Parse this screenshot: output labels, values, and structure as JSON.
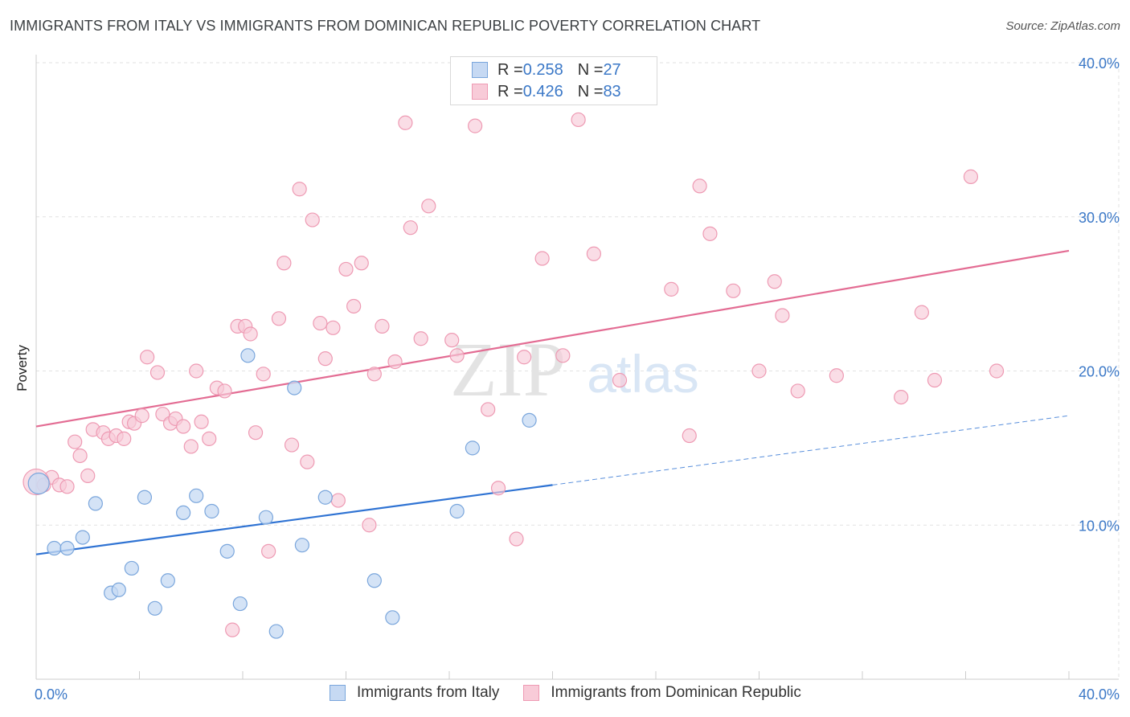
{
  "title": "IMMIGRANTS FROM ITALY VS IMMIGRANTS FROM DOMINICAN REPUBLIC POVERTY CORRELATION CHART",
  "source": "Source: ZipAtlas.com",
  "watermark": {
    "zip": "ZIP",
    "atlas": "atlas"
  },
  "legend_top": {
    "italy": {
      "r_label": "R = ",
      "r_value": "0.258",
      "n_label": "N = ",
      "n_value": "27"
    },
    "dominican": {
      "r_label": "R = ",
      "r_value": "0.426",
      "n_label": "N = ",
      "n_value": "83"
    }
  },
  "legend_bottom": {
    "italy": "Immigrants from Italy",
    "dominican": "Immigrants from Dominican Republic"
  },
  "chart_data": {
    "type": "scatter",
    "title": "IMMIGRANTS FROM ITALY VS IMMIGRANTS FROM DOMINICAN REPUBLIC POVERTY CORRELATION CHART",
    "xlabel": "",
    "ylabel": "Poverty",
    "xlim": [
      0,
      40
    ],
    "ylim": [
      0,
      40
    ],
    "x_tick_labels": [
      "0.0%",
      "40.0%"
    ],
    "y_tick_labels": [
      "10.0%",
      "20.0%",
      "30.0%",
      "40.0%"
    ],
    "y_ticks": [
      10,
      20,
      30,
      40
    ],
    "colors": {
      "italy_fill": "#c6d9f3",
      "italy_stroke": "#7aa6dc",
      "italy_line": "#2f73d3",
      "dom_fill": "#f8cbd8",
      "dom_stroke": "#ee9ab3",
      "dom_line": "#e36c93",
      "axis_text": "#3b78c7"
    },
    "series": [
      {
        "name": "Immigrants from Italy",
        "trend": {
          "x0": 0,
          "y0": 8.1,
          "x1": 20,
          "y1": 12.6,
          "dashed_to_x": 40,
          "dashed_to_y": 17.1
        },
        "points": [
          [
            0.1,
            12.7
          ],
          [
            0.7,
            8.5
          ],
          [
            1.2,
            8.5
          ],
          [
            1.8,
            9.2
          ],
          [
            2.3,
            11.4
          ],
          [
            2.9,
            5.6
          ],
          [
            3.2,
            5.8
          ],
          [
            3.7,
            7.2
          ],
          [
            4.2,
            11.8
          ],
          [
            4.6,
            4.6
          ],
          [
            5.1,
            6.4
          ],
          [
            5.7,
            10.8
          ],
          [
            6.2,
            11.9
          ],
          [
            6.8,
            10.9
          ],
          [
            7.4,
            8.3
          ],
          [
            7.9,
            4.9
          ],
          [
            8.2,
            21.0
          ],
          [
            8.9,
            10.5
          ],
          [
            9.3,
            3.1
          ],
          [
            10.0,
            18.9
          ],
          [
            10.3,
            8.7
          ],
          [
            11.2,
            11.8
          ],
          [
            13.1,
            6.4
          ],
          [
            13.8,
            4.0
          ],
          [
            16.3,
            10.9
          ],
          [
            16.9,
            15.0
          ],
          [
            19.1,
            16.8
          ]
        ]
      },
      {
        "name": "Immigrants from Dominican Republic",
        "trend": {
          "x0": 0,
          "y0": 16.4,
          "x1": 40,
          "y1": 27.8
        },
        "points": [
          [
            0.3,
            12.6
          ],
          [
            0.6,
            13.1
          ],
          [
            0.9,
            12.6
          ],
          [
            1.2,
            12.5
          ],
          [
            1.5,
            15.4
          ],
          [
            1.7,
            14.5
          ],
          [
            2.0,
            13.2
          ],
          [
            2.2,
            16.2
          ],
          [
            2.6,
            16.0
          ],
          [
            2.8,
            15.6
          ],
          [
            3.1,
            15.8
          ],
          [
            3.4,
            15.6
          ],
          [
            3.6,
            16.7
          ],
          [
            3.8,
            16.6
          ],
          [
            4.1,
            17.1
          ],
          [
            4.3,
            20.9
          ],
          [
            4.7,
            19.9
          ],
          [
            4.9,
            17.2
          ],
          [
            5.2,
            16.6
          ],
          [
            5.4,
            16.9
          ],
          [
            5.7,
            16.4
          ],
          [
            6.0,
            15.1
          ],
          [
            6.2,
            20.0
          ],
          [
            6.4,
            16.7
          ],
          [
            6.7,
            15.6
          ],
          [
            7.0,
            18.9
          ],
          [
            7.3,
            18.7
          ],
          [
            7.6,
            3.2
          ],
          [
            7.8,
            22.9
          ],
          [
            8.1,
            22.9
          ],
          [
            8.3,
            22.4
          ],
          [
            8.5,
            16.0
          ],
          [
            8.8,
            19.8
          ],
          [
            9.0,
            8.3
          ],
          [
            9.4,
            23.4
          ],
          [
            9.6,
            27.0
          ],
          [
            9.9,
            15.2
          ],
          [
            10.2,
            31.8
          ],
          [
            10.5,
            14.1
          ],
          [
            10.7,
            29.8
          ],
          [
            11.0,
            23.1
          ],
          [
            11.2,
            20.8
          ],
          [
            11.5,
            22.8
          ],
          [
            11.7,
            11.6
          ],
          [
            12.0,
            26.6
          ],
          [
            12.3,
            24.2
          ],
          [
            12.6,
            27.0
          ],
          [
            12.9,
            10.0
          ],
          [
            13.1,
            19.8
          ],
          [
            13.4,
            22.9
          ],
          [
            13.9,
            20.6
          ],
          [
            14.3,
            36.1
          ],
          [
            14.5,
            29.3
          ],
          [
            14.9,
            22.1
          ],
          [
            15.2,
            30.7
          ],
          [
            16.1,
            22.0
          ],
          [
            16.3,
            21.0
          ],
          [
            17.0,
            35.9
          ],
          [
            17.5,
            17.5
          ],
          [
            17.9,
            12.4
          ],
          [
            18.6,
            9.1
          ],
          [
            18.9,
            20.9
          ],
          [
            19.6,
            27.3
          ],
          [
            20.4,
            21.0
          ],
          [
            21.0,
            36.3
          ],
          [
            21.6,
            27.6
          ],
          [
            22.6,
            19.4
          ],
          [
            24.6,
            25.3
          ],
          [
            25.3,
            15.8
          ],
          [
            25.7,
            32.0
          ],
          [
            26.1,
            28.9
          ],
          [
            27.0,
            25.2
          ],
          [
            28.0,
            20.0
          ],
          [
            28.6,
            25.8
          ],
          [
            28.9,
            23.6
          ],
          [
            29.5,
            18.7
          ],
          [
            31.0,
            19.7
          ],
          [
            33.5,
            18.3
          ],
          [
            34.3,
            23.8
          ],
          [
            34.8,
            19.4
          ],
          [
            36.2,
            32.6
          ],
          [
            37.2,
            20.0
          ],
          [
            0.0,
            12.8
          ]
        ]
      }
    ]
  }
}
